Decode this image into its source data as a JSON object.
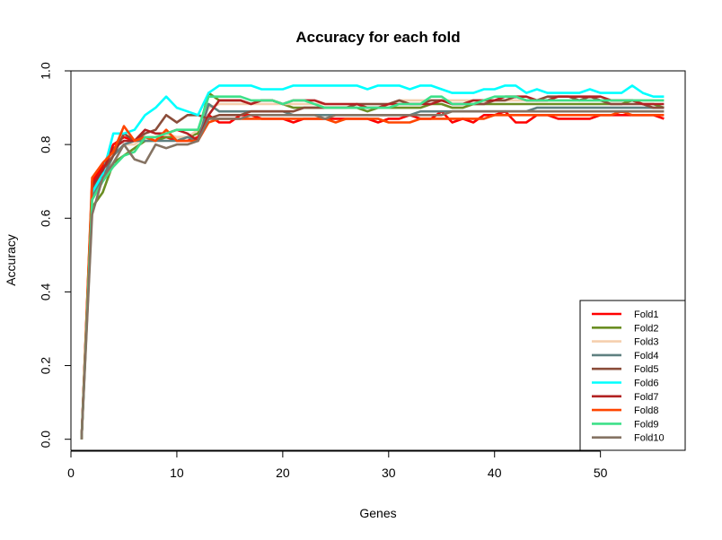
{
  "chart_data": {
    "type": "line",
    "title": "Accuracy for each fold",
    "xlabel": "Genes",
    "ylabel": "Accuracy",
    "xlim": [
      0,
      58
    ],
    "ylim": [
      -0.03,
      1.0
    ],
    "xticks": [
      0,
      10,
      20,
      30,
      40,
      50
    ],
    "yticks": [
      0.0,
      0.2,
      0.4,
      0.6,
      0.8,
      1.0
    ],
    "xtick_labels": [
      "0",
      "10",
      "20",
      "30",
      "40",
      "50"
    ],
    "ytick_labels": [
      "0.0",
      "0.2",
      "0.4",
      "0.6",
      "0.8",
      "1.0"
    ],
    "grid": false,
    "legend_position": "bottom-right",
    "x": [
      1,
      2,
      3,
      4,
      5,
      6,
      7,
      8,
      9,
      10,
      11,
      12,
      13,
      14,
      15,
      16,
      17,
      18,
      19,
      20,
      21,
      22,
      23,
      24,
      25,
      26,
      27,
      28,
      29,
      30,
      31,
      32,
      33,
      34,
      35,
      36,
      37,
      38,
      39,
      40,
      41,
      42,
      43,
      44,
      45,
      46,
      47,
      48,
      49,
      50,
      51,
      52,
      53,
      54,
      55,
      56
    ],
    "series": [
      {
        "name": "Fold1",
        "color": "#ff0000",
        "values": [
          0.0,
          0.7,
          0.74,
          0.8,
          0.82,
          0.81,
          0.82,
          0.82,
          0.82,
          0.81,
          0.81,
          0.82,
          0.88,
          0.86,
          0.86,
          0.88,
          0.88,
          0.87,
          0.87,
          0.87,
          0.86,
          0.87,
          0.87,
          0.87,
          0.87,
          0.87,
          0.87,
          0.87,
          0.86,
          0.87,
          0.87,
          0.88,
          0.87,
          0.87,
          0.89,
          0.86,
          0.87,
          0.86,
          0.88,
          0.88,
          0.89,
          0.86,
          0.86,
          0.88,
          0.88,
          0.87,
          0.87,
          0.87,
          0.87,
          0.88,
          0.88,
          0.88,
          0.88,
          0.88,
          0.88,
          0.87
        ]
      },
      {
        "name": "Fold2",
        "color": "#6b8e23",
        "values": [
          0.0,
          0.63,
          0.67,
          0.75,
          0.77,
          0.79,
          0.81,
          0.81,
          0.82,
          0.82,
          0.82,
          0.83,
          0.94,
          0.92,
          0.92,
          0.92,
          0.91,
          0.92,
          0.92,
          0.91,
          0.9,
          0.9,
          0.9,
          0.9,
          0.9,
          0.9,
          0.9,
          0.89,
          0.9,
          0.9,
          0.9,
          0.9,
          0.9,
          0.91,
          0.91,
          0.9,
          0.9,
          0.91,
          0.91,
          0.91,
          0.91,
          0.91,
          0.91,
          0.91,
          0.91,
          0.91,
          0.91,
          0.91,
          0.91,
          0.91,
          0.91,
          0.91,
          0.92,
          0.91,
          0.91,
          0.9
        ]
      },
      {
        "name": "Fold3",
        "color": "#f5cfae",
        "values": [
          0.0,
          0.65,
          0.7,
          0.77,
          0.8,
          0.8,
          0.82,
          0.82,
          0.83,
          0.82,
          0.82,
          0.84,
          0.9,
          0.91,
          0.91,
          0.91,
          0.91,
          0.91,
          0.91,
          0.91,
          0.91,
          0.91,
          0.91,
          0.91,
          0.91,
          0.91,
          0.91,
          0.91,
          0.91,
          0.91,
          0.92,
          0.92,
          0.92,
          0.92,
          0.92,
          0.92,
          0.92,
          0.92,
          0.92,
          0.92,
          0.92,
          0.92,
          0.92,
          0.92,
          0.92,
          0.92,
          0.92,
          0.92,
          0.92,
          0.92,
          0.92,
          0.92,
          0.92,
          0.92,
          0.92,
          0.92
        ]
      },
      {
        "name": "Fold4",
        "color": "#5f8080",
        "values": [
          0.0,
          0.66,
          0.71,
          0.77,
          0.8,
          0.81,
          0.81,
          0.81,
          0.81,
          0.81,
          0.82,
          0.81,
          0.91,
          0.89,
          0.89,
          0.89,
          0.89,
          0.89,
          0.89,
          0.89,
          0.88,
          0.88,
          0.88,
          0.88,
          0.88,
          0.88,
          0.88,
          0.88,
          0.88,
          0.88,
          0.88,
          0.88,
          0.89,
          0.89,
          0.89,
          0.89,
          0.89,
          0.89,
          0.89,
          0.89,
          0.89,
          0.89,
          0.89,
          0.9,
          0.9,
          0.9,
          0.9,
          0.9,
          0.9,
          0.9,
          0.9,
          0.9,
          0.9,
          0.9,
          0.9,
          0.9
        ]
      },
      {
        "name": "Fold5",
        "color": "#8b4d3a",
        "values": [
          0.0,
          0.68,
          0.73,
          0.77,
          0.83,
          0.81,
          0.83,
          0.84,
          0.88,
          0.86,
          0.88,
          0.88,
          0.87,
          0.88,
          0.88,
          0.88,
          0.89,
          0.89,
          0.89,
          0.89,
          0.89,
          0.9,
          0.9,
          0.9,
          0.9,
          0.9,
          0.91,
          0.91,
          0.91,
          0.91,
          0.92,
          0.91,
          0.91,
          0.92,
          0.92,
          0.91,
          0.91,
          0.91,
          0.91,
          0.92,
          0.92,
          0.93,
          0.92,
          0.92,
          0.93,
          0.93,
          0.93,
          0.92,
          0.93,
          0.92,
          0.91,
          0.91,
          0.91,
          0.91,
          0.9,
          0.9
        ]
      },
      {
        "name": "Fold6",
        "color": "#00ffff",
        "values": [
          0.0,
          0.67,
          0.72,
          0.83,
          0.83,
          0.84,
          0.88,
          0.9,
          0.93,
          0.9,
          0.89,
          0.88,
          0.94,
          0.96,
          0.96,
          0.96,
          0.96,
          0.95,
          0.95,
          0.95,
          0.96,
          0.96,
          0.96,
          0.96,
          0.96,
          0.96,
          0.96,
          0.95,
          0.96,
          0.96,
          0.96,
          0.95,
          0.96,
          0.96,
          0.95,
          0.94,
          0.94,
          0.94,
          0.95,
          0.95,
          0.96,
          0.96,
          0.94,
          0.95,
          0.94,
          0.94,
          0.94,
          0.94,
          0.95,
          0.94,
          0.94,
          0.94,
          0.96,
          0.94,
          0.93,
          0.93
        ]
      },
      {
        "name": "Fold7",
        "color": "#b22222",
        "values": [
          0.0,
          0.69,
          0.73,
          0.79,
          0.81,
          0.81,
          0.84,
          0.83,
          0.83,
          0.84,
          0.83,
          0.81,
          0.88,
          0.92,
          0.92,
          0.92,
          0.91,
          0.92,
          0.92,
          0.91,
          0.92,
          0.92,
          0.92,
          0.91,
          0.91,
          0.91,
          0.91,
          0.9,
          0.9,
          0.91,
          0.91,
          0.91,
          0.91,
          0.91,
          0.92,
          0.91,
          0.91,
          0.92,
          0.92,
          0.92,
          0.93,
          0.93,
          0.93,
          0.92,
          0.92,
          0.93,
          0.93,
          0.93,
          0.93,
          0.93,
          0.92,
          0.92,
          0.92,
          0.91,
          0.91,
          0.91
        ]
      },
      {
        "name": "Fold8",
        "color": "#ff4500",
        "values": [
          0.0,
          0.71,
          0.75,
          0.78,
          0.85,
          0.81,
          0.82,
          0.81,
          0.84,
          0.81,
          0.81,
          0.81,
          0.86,
          0.87,
          0.87,
          0.87,
          0.87,
          0.87,
          0.87,
          0.87,
          0.87,
          0.87,
          0.87,
          0.87,
          0.86,
          0.87,
          0.87,
          0.87,
          0.87,
          0.86,
          0.86,
          0.86,
          0.87,
          0.87,
          0.87,
          0.87,
          0.87,
          0.87,
          0.87,
          0.88,
          0.88,
          0.88,
          0.88,
          0.88,
          0.88,
          0.88,
          0.88,
          0.88,
          0.88,
          0.88,
          0.88,
          0.89,
          0.88,
          0.88,
          0.88,
          0.88
        ]
      },
      {
        "name": "Fold9",
        "color": "#3ee089",
        "values": [
          0.0,
          0.65,
          0.7,
          0.74,
          0.77,
          0.78,
          0.82,
          0.82,
          0.83,
          0.84,
          0.84,
          0.84,
          0.93,
          0.93,
          0.93,
          0.93,
          0.92,
          0.92,
          0.92,
          0.91,
          0.92,
          0.92,
          0.91,
          0.9,
          0.9,
          0.9,
          0.9,
          0.9,
          0.9,
          0.9,
          0.91,
          0.91,
          0.91,
          0.93,
          0.93,
          0.91,
          0.91,
          0.91,
          0.92,
          0.93,
          0.93,
          0.93,
          0.92,
          0.92,
          0.92,
          0.92,
          0.92,
          0.92,
          0.92,
          0.92,
          0.92,
          0.92,
          0.92,
          0.92,
          0.92,
          0.92
        ]
      },
      {
        "name": "Fold10",
        "color": "#857363",
        "values": [
          0.0,
          0.61,
          0.71,
          0.75,
          0.8,
          0.76,
          0.75,
          0.8,
          0.79,
          0.8,
          0.8,
          0.81,
          0.87,
          0.87,
          0.87,
          0.87,
          0.88,
          0.88,
          0.88,
          0.88,
          0.88,
          0.88,
          0.88,
          0.87,
          0.88,
          0.88,
          0.88,
          0.88,
          0.88,
          0.88,
          0.88,
          0.88,
          0.88,
          0.88,
          0.88,
          0.89,
          0.89,
          0.89,
          0.89,
          0.89,
          0.89,
          0.89,
          0.89,
          0.89,
          0.89,
          0.89,
          0.89,
          0.89,
          0.89,
          0.89,
          0.89,
          0.89,
          0.89,
          0.89,
          0.89,
          0.89
        ]
      }
    ]
  }
}
